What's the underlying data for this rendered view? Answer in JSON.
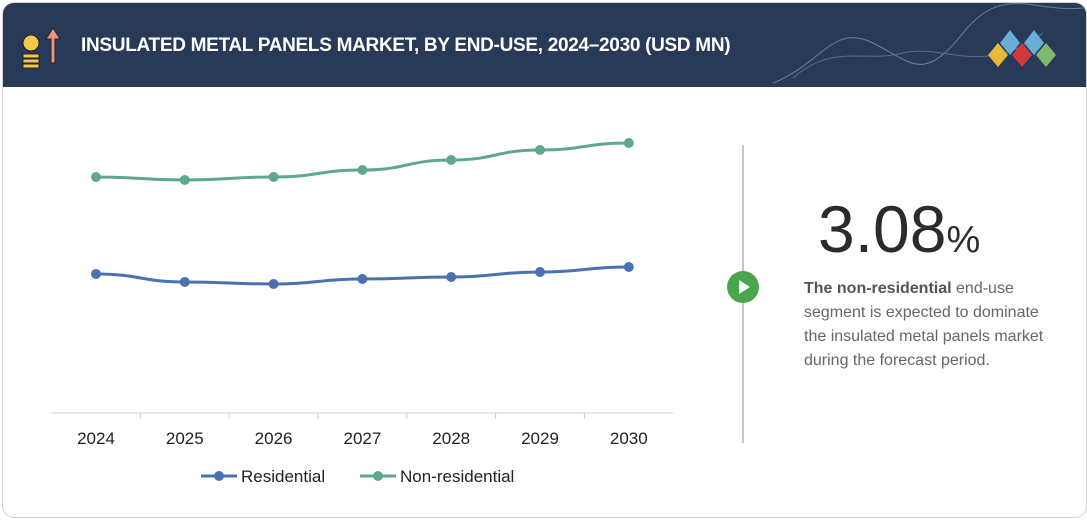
{
  "header": {
    "title": "INSULATED METAL PANELS MARKET, BY END-USE, 2024–2030 (USD MN)",
    "icon": "money-growth-icon",
    "logo": "diamond-logo"
  },
  "stat": {
    "value": "3.08",
    "unit": "%",
    "desc_bold": "The non-residential",
    "desc_rest": " end-use segment is expected to dominate the insulated metal panels market during the forecast period."
  },
  "chart_data": {
    "type": "line",
    "title": "",
    "xlabel": "",
    "ylabel": "",
    "categories": [
      "2024",
      "2025",
      "2026",
      "2027",
      "2028",
      "2029",
      "2030"
    ],
    "series": [
      {
        "name": "Residential",
        "color": "#4a72b0",
        "values": [
          139,
          131,
          129,
          134,
          136,
          141,
          146
        ]
      },
      {
        "name": "Non-residential",
        "color": "#5fa88e",
        "values": [
          236,
          233,
          236,
          243,
          253,
          263,
          270
        ]
      }
    ],
    "ylim": [
      0,
      280
    ],
    "grid": false,
    "legend": "bottom"
  }
}
